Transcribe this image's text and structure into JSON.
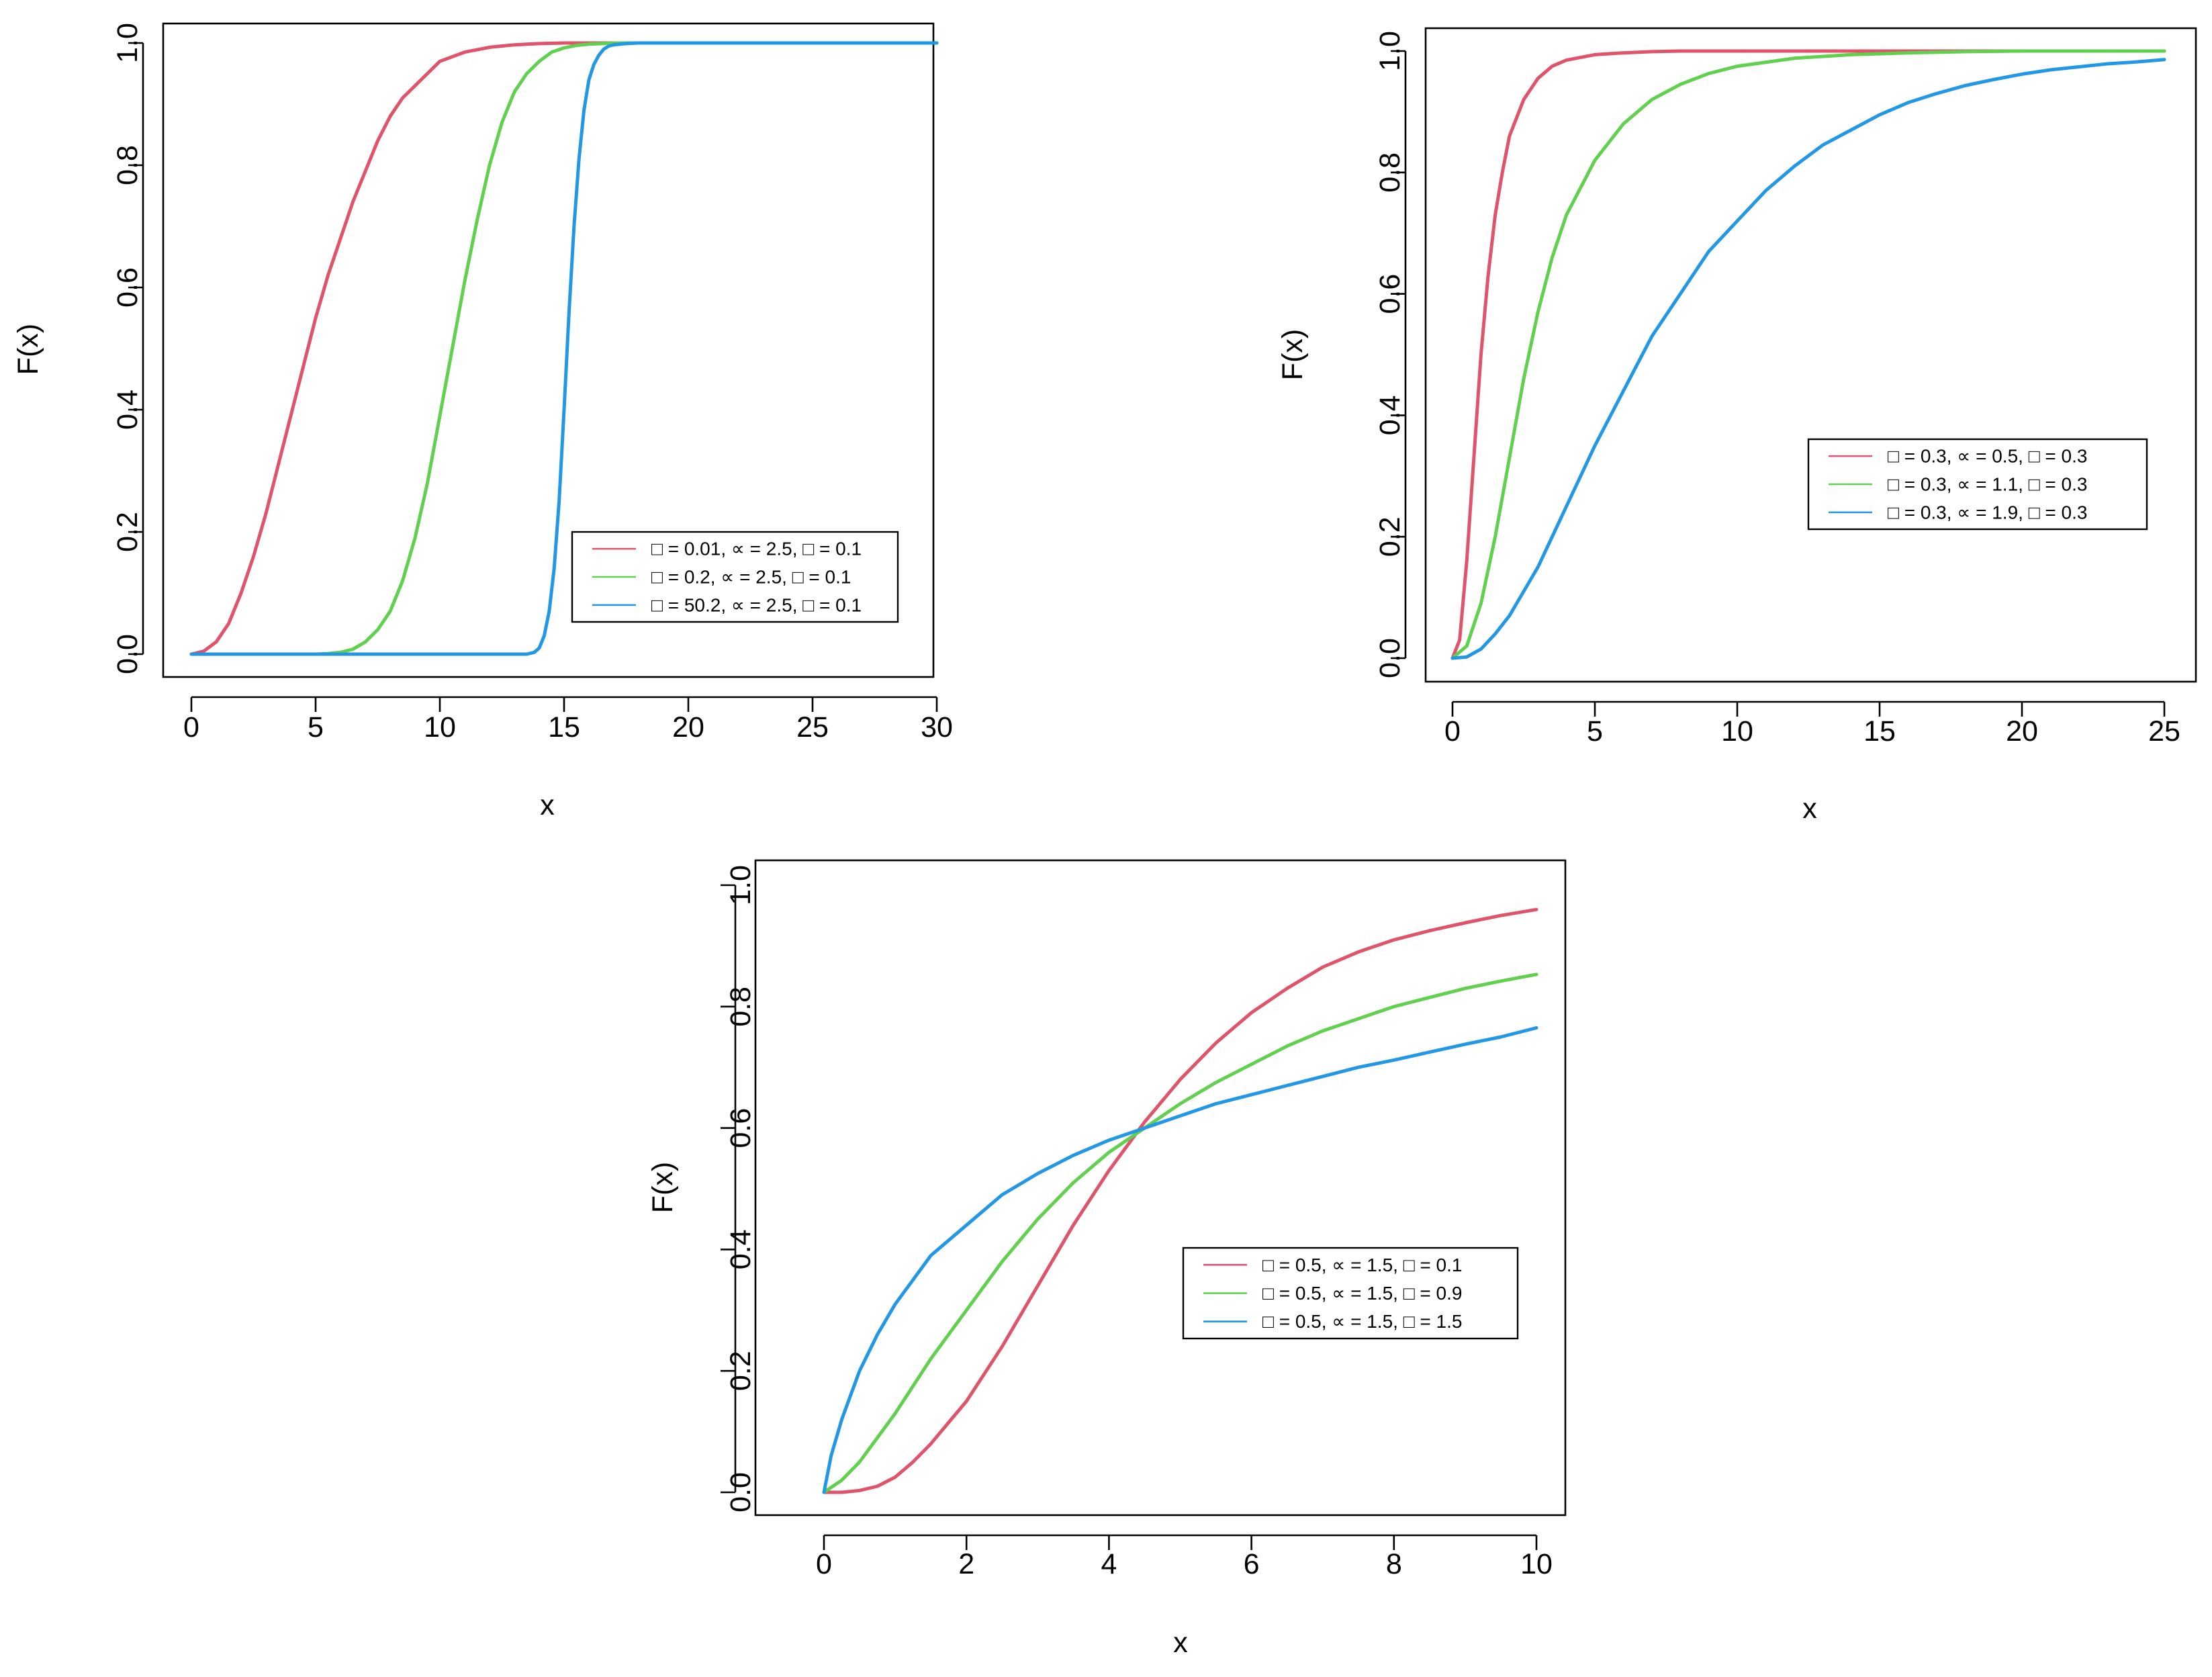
{
  "chart_data": [
    {
      "type": "line",
      "title": "",
      "xlabel": "x",
      "ylabel": "F(x)",
      "xlim": [
        0,
        30
      ],
      "ylim": [
        0,
        1
      ],
      "xticks": [
        "0",
        "5",
        "10",
        "15",
        "20",
        "25",
        "30"
      ],
      "yticks": [
        "0.0",
        "0.2",
        "0.4",
        "0.6",
        "0.8",
        "1.0"
      ],
      "legend_position": "bottom-right",
      "series": [
        {
          "name": "□ = 0.01, ∝ = 2.5, □ = 0.1",
          "color": "#DF536B",
          "x": [
            0,
            0.5,
            1,
            1.5,
            2,
            2.5,
            3,
            3.5,
            4,
            4.5,
            5,
            5.5,
            6,
            6.5,
            7,
            7.5,
            8,
            8.5,
            9,
            9.5,
            10,
            11,
            12,
            13,
            14,
            15,
            16,
            30
          ],
          "y": [
            0,
            0.005,
            0.02,
            0.05,
            0.1,
            0.16,
            0.23,
            0.31,
            0.39,
            0.47,
            0.55,
            0.62,
            0.68,
            0.74,
            0.79,
            0.84,
            0.88,
            0.91,
            0.93,
            0.95,
            0.97,
            0.985,
            0.993,
            0.997,
            0.999,
            1,
            1,
            1
          ]
        },
        {
          "name": "□ = 0.2, ∝ = 2.5, □ = 0.1",
          "color": "#61D04F",
          "x": [
            0,
            5,
            5.5,
            6,
            6.5,
            7,
            7.5,
            8,
            8.5,
            9,
            9.5,
            10,
            10.5,
            11,
            11.5,
            12,
            12.5,
            13,
            13.5,
            14,
            14.5,
            15,
            15.5,
            16,
            17,
            18,
            19,
            30
          ],
          "y": [
            0,
            0,
            0.001,
            0.003,
            0.008,
            0.02,
            0.04,
            0.07,
            0.12,
            0.19,
            0.28,
            0.39,
            0.5,
            0.61,
            0.71,
            0.8,
            0.87,
            0.92,
            0.95,
            0.97,
            0.985,
            0.992,
            0.996,
            0.998,
            1,
            1,
            1,
            1
          ]
        },
        {
          "name": "□ = 50.2, ∝ = 2.5, □ = 0.1",
          "color": "#2297E6",
          "x": [
            0,
            13,
            13.5,
            13.8,
            14,
            14.2,
            14.4,
            14.6,
            14.8,
            15,
            15.2,
            15.4,
            15.6,
            15.8,
            16,
            16.2,
            16.4,
            16.6,
            16.8,
            17,
            17.5,
            18,
            18.5,
            19,
            30
          ],
          "y": [
            0,
            0,
            0,
            0.003,
            0.01,
            0.03,
            0.07,
            0.14,
            0.25,
            0.4,
            0.56,
            0.7,
            0.81,
            0.89,
            0.94,
            0.965,
            0.98,
            0.99,
            0.995,
            0.997,
            0.999,
            1,
            1,
            1,
            1
          ]
        }
      ]
    },
    {
      "type": "line",
      "title": "",
      "xlabel": "x",
      "ylabel": "F(x)",
      "xlim": [
        0,
        25
      ],
      "ylim": [
        0,
        1
      ],
      "xticks": [
        "0",
        "5",
        "10",
        "15",
        "20",
        "25"
      ],
      "yticks": [
        "0.0",
        "0.2",
        "0.4",
        "0.6",
        "0.8",
        "1.0"
      ],
      "legend_position": "right",
      "series": [
        {
          "name": "□ = 0.3, ∝ = 0.5, □ = 0.3",
          "color": "#DF536B",
          "x": [
            0,
            0.25,
            0.5,
            0.75,
            1,
            1.25,
            1.5,
            1.75,
            2,
            2.5,
            3,
            3.5,
            4,
            5,
            6,
            7,
            8,
            10,
            12,
            15,
            20,
            25
          ],
          "y": [
            0,
            0.03,
            0.16,
            0.33,
            0.5,
            0.63,
            0.73,
            0.8,
            0.86,
            0.92,
            0.955,
            0.975,
            0.985,
            0.994,
            0.997,
            0.999,
            1,
            1,
            1,
            1,
            1,
            1
          ]
        },
        {
          "name": "□ = 0.3, ∝ = 1.1, □ = 0.3",
          "color": "#61D04F",
          "x": [
            0,
            0.5,
            1,
            1.5,
            2,
            2.5,
            3,
            3.5,
            4,
            5,
            6,
            7,
            8,
            9,
            10,
            12,
            14,
            16,
            18,
            20,
            25
          ],
          "y": [
            0,
            0.02,
            0.09,
            0.2,
            0.33,
            0.46,
            0.57,
            0.66,
            0.73,
            0.82,
            0.88,
            0.92,
            0.945,
            0.963,
            0.975,
            0.988,
            0.994,
            0.997,
            0.999,
            1,
            1
          ]
        },
        {
          "name": "□ = 0.3, ∝ = 1.9, □ = 0.3",
          "color": "#2297E6",
          "x": [
            0,
            0.5,
            1,
            1.5,
            2,
            2.5,
            3,
            4,
            5,
            6,
            7,
            8,
            9,
            10,
            11,
            12,
            13,
            14,
            15,
            16,
            17,
            18,
            19,
            20,
            21,
            22,
            23,
            24,
            25
          ],
          "y": [
            0,
            0.002,
            0.015,
            0.04,
            0.07,
            0.11,
            0.15,
            0.25,
            0.35,
            0.44,
            0.53,
            0.6,
            0.67,
            0.72,
            0.77,
            0.81,
            0.845,
            0.87,
            0.895,
            0.915,
            0.93,
            0.943,
            0.953,
            0.962,
            0.969,
            0.974,
            0.979,
            0.982,
            0.986
          ]
        }
      ]
    },
    {
      "type": "line",
      "title": "",
      "xlabel": "x",
      "ylabel": "F(x)",
      "xlim": [
        0,
        10
      ],
      "ylim": [
        0,
        1
      ],
      "xticks": [
        "0",
        "2",
        "4",
        "6",
        "8",
        "10"
      ],
      "yticks": [
        "0.0",
        "0.2",
        "0.4",
        "0.6",
        "0.8",
        "1.0"
      ],
      "legend_position": "right",
      "series": [
        {
          "name": "□ = 0.5, ∝ = 1.5, □ = 0.1",
          "color": "#DF536B",
          "x": [
            0,
            0.25,
            0.5,
            0.75,
            1,
            1.25,
            1.5,
            1.75,
            2,
            2.5,
            3,
            3.5,
            4,
            4.5,
            5,
            5.5,
            6,
            6.5,
            7,
            7.5,
            8,
            8.5,
            9,
            9.5,
            10
          ],
          "y": [
            0,
            0,
            0.003,
            0.01,
            0.025,
            0.05,
            0.08,
            0.115,
            0.15,
            0.24,
            0.34,
            0.44,
            0.53,
            0.61,
            0.68,
            0.74,
            0.79,
            0.83,
            0.865,
            0.89,
            0.91,
            0.925,
            0.938,
            0.95,
            0.96
          ]
        },
        {
          "name": "□ = 0.5, ∝ = 1.5, □ = 0.9",
          "color": "#61D04F",
          "x": [
            0,
            0.25,
            0.5,
            0.75,
            1,
            1.5,
            2,
            2.5,
            3,
            3.5,
            4,
            4.5,
            5,
            5.5,
            6,
            6.5,
            7,
            7.5,
            8,
            8.5,
            9,
            9.5,
            10
          ],
          "y": [
            0,
            0.02,
            0.05,
            0.09,
            0.13,
            0.22,
            0.3,
            0.38,
            0.45,
            0.51,
            0.56,
            0.6,
            0.64,
            0.675,
            0.705,
            0.735,
            0.76,
            0.78,
            0.8,
            0.815,
            0.83,
            0.842,
            0.853
          ]
        },
        {
          "name": "□ = 0.5, ∝ = 1.5, □ = 1.5",
          "color": "#2297E6",
          "x": [
            0,
            0.1,
            0.25,
            0.5,
            0.75,
            1,
            1.5,
            2,
            2.5,
            3,
            3.5,
            4,
            4.5,
            5,
            5.5,
            6,
            6.5,
            7,
            7.5,
            8,
            8.5,
            9,
            9.5,
            10
          ],
          "y": [
            0,
            0.06,
            0.12,
            0.2,
            0.26,
            0.31,
            0.39,
            0.44,
            0.49,
            0.525,
            0.555,
            0.58,
            0.6,
            0.62,
            0.64,
            0.655,
            0.67,
            0.685,
            0.7,
            0.712,
            0.725,
            0.738,
            0.75,
            0.765
          ]
        }
      ]
    }
  ]
}
